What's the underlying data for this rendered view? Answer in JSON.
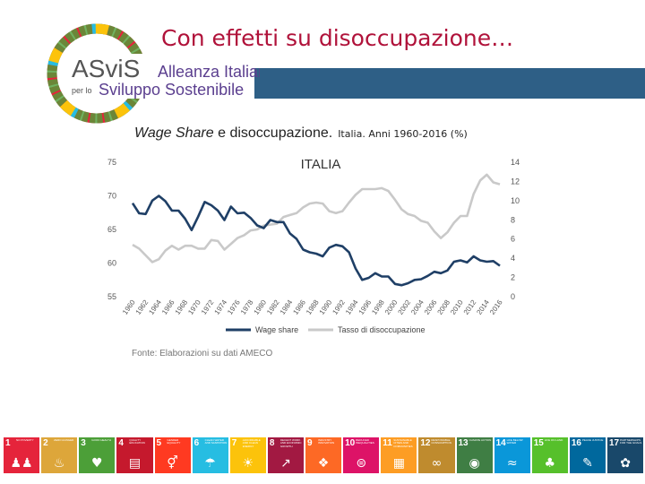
{
  "title": "Con effetti su disoccupazione…",
  "logo": {
    "brand": "ASviS",
    "line1": "Alleanza Italiana",
    "line2_prefix": "per lo",
    "line2": "Sviluppo Sostenibile"
  },
  "subtitle": {
    "italic": "Wage Share",
    "main": " e disoccupazione.",
    "rest": "Italia. Anni 1960-2016 (%)"
  },
  "source": "Fonte: Elaborazioni su dati AMECO",
  "colors": {
    "title": "#b0123a",
    "banner": "#2e5f86",
    "wage": "#1f3f66",
    "unemp": "#c9c9c9"
  },
  "chart_data": {
    "type": "line",
    "title": "ITALIA",
    "x": [
      1960,
      1961,
      1962,
      1963,
      1964,
      1965,
      1966,
      1967,
      1968,
      1969,
      1970,
      1971,
      1972,
      1973,
      1974,
      1975,
      1976,
      1977,
      1978,
      1979,
      1980,
      1981,
      1982,
      1983,
      1984,
      1985,
      1986,
      1987,
      1988,
      1989,
      1990,
      1991,
      1992,
      1993,
      1994,
      1995,
      1996,
      1997,
      1998,
      1999,
      2000,
      2001,
      2002,
      2003,
      2004,
      2005,
      2006,
      2007,
      2008,
      2009,
      2010,
      2011,
      2012,
      2013,
      2014,
      2015,
      2016
    ],
    "x_tick_labels": [
      "1960",
      "1962",
      "1964",
      "1966",
      "1968",
      "1970",
      "1972",
      "1974",
      "1976",
      "1978",
      "1980",
      "1982",
      "1984",
      "1986",
      "1988",
      "1990",
      "1992",
      "1994",
      "1996",
      "1998",
      "2000",
      "2002",
      "2004",
      "2006",
      "2008",
      "2010",
      "2012",
      "2014",
      "2016"
    ],
    "left_axis": {
      "range": [
        55,
        75
      ],
      "ticks": [
        "55",
        "60",
        "65",
        "70",
        "75"
      ]
    },
    "right_axis": {
      "range": [
        0,
        14
      ],
      "ticks": [
        "0",
        "2",
        "4",
        "6",
        "8",
        "10",
        "12",
        "14"
      ]
    },
    "series": [
      {
        "name": "Wage share",
        "axis": "left",
        "values": [
          68.9,
          67.4,
          67.3,
          69.3,
          70.0,
          69.2,
          67.8,
          67.8,
          66.6,
          64.9,
          66.9,
          69.1,
          68.6,
          67.8,
          66.4,
          68.4,
          67.4,
          67.5,
          66.7,
          65.6,
          65.2,
          66.4,
          66.1,
          66.1,
          64.4,
          63.6,
          62.0,
          61.6,
          61.4,
          61.0,
          62.3,
          62.7,
          62.5,
          61.6,
          59.2,
          57.5,
          57.8,
          58.5,
          58.0,
          58.0,
          56.9,
          56.7,
          57.0,
          57.5,
          57.6,
          58.1,
          58.7,
          58.5,
          58.9,
          60.2,
          60.4,
          60.1,
          61.0,
          60.4,
          60.2,
          60.3,
          59.6
        ]
      },
      {
        "name": "Tasso di disoccupazione",
        "axis": "right",
        "values": [
          5.4,
          5.0,
          4.3,
          3.6,
          3.9,
          4.8,
          5.3,
          4.9,
          5.3,
          5.3,
          5.0,
          5.0,
          5.9,
          5.8,
          4.9,
          5.5,
          6.1,
          6.4,
          6.9,
          7.0,
          7.4,
          7.5,
          7.6,
          8.3,
          8.5,
          8.7,
          9.3,
          9.7,
          9.8,
          9.7,
          8.9,
          8.7,
          8.9,
          9.8,
          10.6,
          11.2,
          11.2,
          11.2,
          11.3,
          11.0,
          10.1,
          9.1,
          8.6,
          8.4,
          7.9,
          7.7,
          6.8,
          6.1,
          6.7,
          7.7,
          8.4,
          8.4,
          10.7,
          12.1,
          12.7,
          11.9,
          11.7
        ]
      }
    ],
    "legend": [
      "Wage share",
      "Tasso di disoccupazione"
    ]
  },
  "sdgs": [
    {
      "n": "1",
      "label": "No poverty",
      "color": "#e5243b",
      "icon": "people-icon",
      "glyph": "♟♟"
    },
    {
      "n": "2",
      "label": "Zero hunger",
      "color": "#dda63a",
      "icon": "bowl-icon",
      "glyph": "♨"
    },
    {
      "n": "3",
      "label": "Good health",
      "color": "#4c9f38",
      "icon": "heartbeat-icon",
      "glyph": "♥"
    },
    {
      "n": "4",
      "label": "Quality education",
      "color": "#c5192d",
      "icon": "book-icon",
      "glyph": "▤"
    },
    {
      "n": "5",
      "label": "Gender equality",
      "color": "#ff3a21",
      "icon": "gender-icon",
      "glyph": "⚥"
    },
    {
      "n": "6",
      "label": "Clean water and sanitation",
      "color": "#26bde2",
      "icon": "water-icon",
      "glyph": "☂"
    },
    {
      "n": "7",
      "label": "Affordable and clean energy",
      "color": "#fcc30b",
      "icon": "sun-icon",
      "glyph": "☀"
    },
    {
      "n": "8",
      "label": "Decent work and economic growth",
      "color": "#a21942",
      "icon": "growth-icon",
      "glyph": "↗"
    },
    {
      "n": "9",
      "label": "Industry innovation",
      "color": "#fd6925",
      "icon": "cubes-icon",
      "glyph": "❖"
    },
    {
      "n": "10",
      "label": "Reduced inequalities",
      "color": "#dd1367",
      "icon": "equal-icon",
      "glyph": "⊜"
    },
    {
      "n": "11",
      "label": "Sustainable cities and communities",
      "color": "#fd9d24",
      "icon": "city-icon",
      "glyph": "▦"
    },
    {
      "n": "12",
      "label": "Responsible consumption",
      "color": "#bf8b2e",
      "icon": "infinity-icon",
      "glyph": "∞"
    },
    {
      "n": "13",
      "label": "Climate action",
      "color": "#3f7e44",
      "icon": "eye-icon",
      "glyph": "◉"
    },
    {
      "n": "14",
      "label": "Life below water",
      "color": "#0a97d9",
      "icon": "fish-icon",
      "glyph": "≈"
    },
    {
      "n": "15",
      "label": "Life on land",
      "color": "#56c02b",
      "icon": "tree-icon",
      "glyph": "♣"
    },
    {
      "n": "16",
      "label": "Peace justice",
      "color": "#00689d",
      "icon": "dove-icon",
      "glyph": "✎"
    },
    {
      "n": "17",
      "label": "Partnerships for the goals",
      "color": "#19486a",
      "icon": "partnership-icon",
      "glyph": "✿"
    }
  ]
}
